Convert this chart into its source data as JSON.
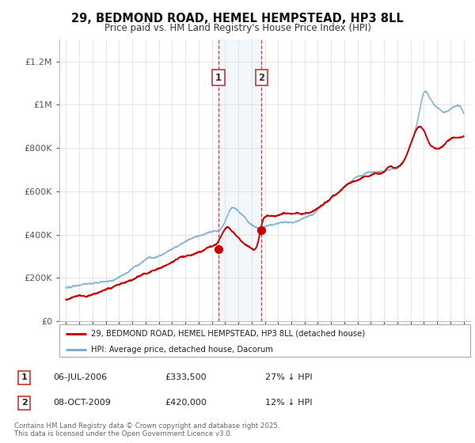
{
  "title_line1": "29, BEDMOND ROAD, HEMEL HEMPSTEAD, HP3 8LL",
  "title_line2": "Price paid vs. HM Land Registry's House Price Index (HPI)",
  "legend_label_red": "29, BEDMOND ROAD, HEMEL HEMPSTEAD, HP3 8LL (detached house)",
  "legend_label_blue": "HPI: Average price, detached house, Dacorum",
  "sale1_label": "1",
  "sale1_date": "06-JUL-2006",
  "sale1_price": "£333,500",
  "sale1_note": "27% ↓ HPI",
  "sale2_label": "2",
  "sale2_date": "08-OCT-2009",
  "sale2_price": "£420,000",
  "sale2_note": "12% ↓ HPI",
  "footer": "Contains HM Land Registry data © Crown copyright and database right 2025.\nThis data is licensed under the Open Government Licence v3.0.",
  "background_color": "#ffffff",
  "plot_bg_color": "#ffffff",
  "grid_color": "#e0e0e0",
  "red_color": "#cc0000",
  "blue_color": "#7bafd4",
  "shade_color": "#c8dff0",
  "ylim": [
    0,
    1300000
  ],
  "yticks": [
    0,
    200000,
    400000,
    600000,
    800000,
    1000000,
    1200000
  ],
  "ytick_labels": [
    "£0",
    "£200K",
    "£400K",
    "£600K",
    "£800K",
    "£1M",
    "£1.2M"
  ],
  "sale1_x": 2006.5,
  "sale2_x": 2009.75,
  "sale1_y": 333500,
  "sale2_y": 420000,
  "shade_x1": 2006.5,
  "shade_x2": 2009.75,
  "xmin": 1994.5,
  "xmax": 2025.5
}
